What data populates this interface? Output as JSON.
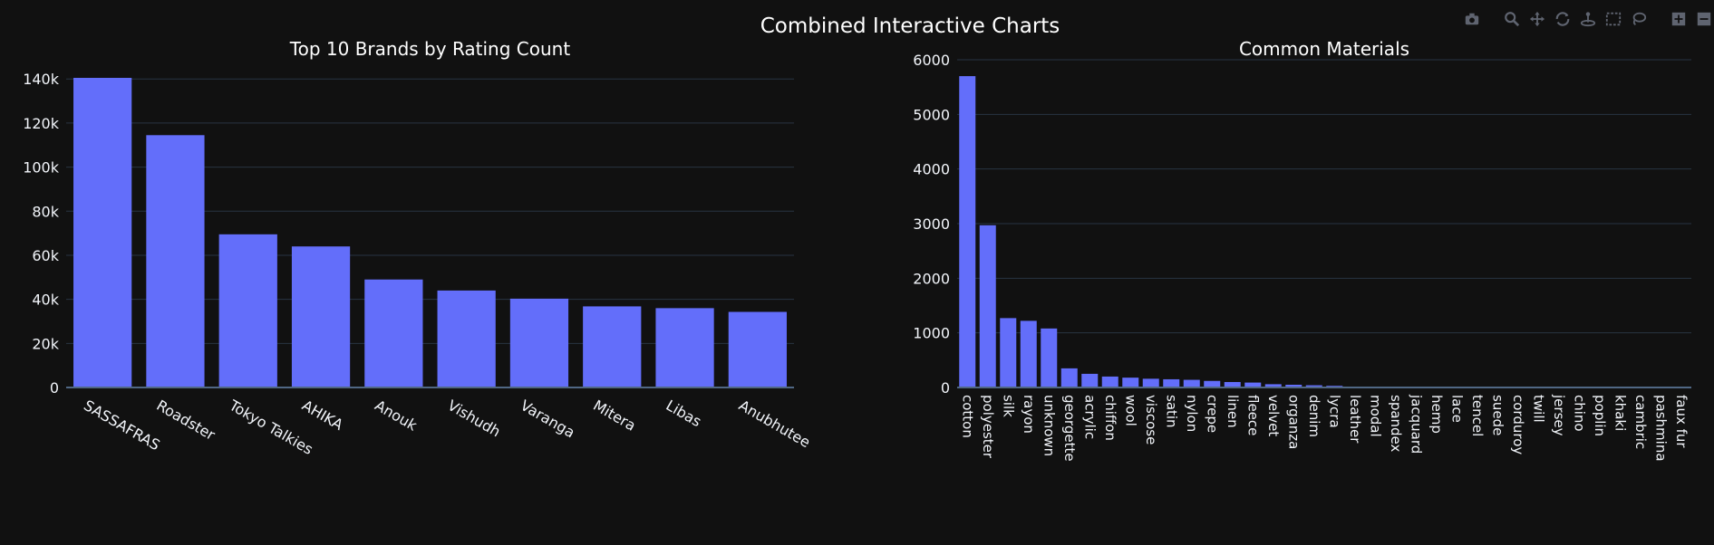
{
  "figure": {
    "title": "Combined Interactive Charts"
  },
  "modebar": {
    "icons": [
      "camera-icon",
      "zoom-icon",
      "pan-icon",
      "orbit-icon",
      "turntable-icon",
      "box-select-icon",
      "lasso-select-icon",
      "zoom-in-icon",
      "zoom-out-icon"
    ]
  },
  "colors": {
    "bar": "#636efa",
    "background": "#111111",
    "grid": "#283442",
    "zeroline": "#506784"
  },
  "chart_data": [
    {
      "type": "bar",
      "title": "Top 10 Brands by Rating Count",
      "xlabel": "",
      "ylabel": "",
      "categories": [
        "SASSAFRAS",
        "Roadster",
        "Tokyo Talkies",
        "AHIKA",
        "Anouk",
        "Vishudh",
        "Varanga",
        "Mitera",
        "Libas",
        "Anubhutee"
      ],
      "values": [
        140500,
        114500,
        69500,
        64000,
        49000,
        44000,
        40300,
        36800,
        36000,
        34300
      ],
      "ylim": [
        0,
        140500
      ],
      "yticks": [
        0,
        20000,
        40000,
        60000,
        80000,
        100000,
        120000,
        140000
      ],
      "ytick_labels": [
        "0",
        "20k",
        "40k",
        "60k",
        "80k",
        "100k",
        "120k",
        "140k"
      ],
      "grid": true,
      "legend": "none"
    },
    {
      "type": "bar",
      "title": "Common Materials",
      "xlabel": "",
      "ylabel": "",
      "categories": [
        "cotton",
        "polyester",
        "silk",
        "rayon",
        "unknown",
        "georgette",
        "acrylic",
        "chiffon",
        "wool",
        "viscose",
        "satin",
        "nylon",
        "crepe",
        "linen",
        "fleece",
        "velvet",
        "organza",
        "denim",
        "lycra",
        "leather",
        "modal",
        "spandex",
        "jacquard",
        "hemp",
        "lace",
        "tencel",
        "suede",
        "corduroy",
        "twill",
        "jersey",
        "chino",
        "poplin",
        "khaki",
        "cambric",
        "pashmina",
        "faux fur"
      ],
      "values": [
        5700,
        2970,
        1270,
        1220,
        1080,
        350,
        250,
        200,
        180,
        160,
        150,
        140,
        120,
        100,
        90,
        60,
        50,
        40,
        30,
        15,
        10,
        8,
        6,
        5,
        4,
        3,
        3,
        2,
        2,
        2,
        1,
        1,
        1,
        1,
        1,
        1
      ],
      "ylim": [
        0,
        6000
      ],
      "yticks": [
        0,
        1000,
        2000,
        3000,
        4000,
        5000,
        6000
      ],
      "ytick_labels": [
        "0",
        "1000",
        "2000",
        "3000",
        "4000",
        "5000",
        "6000"
      ],
      "grid": true,
      "legend": "none"
    }
  ]
}
